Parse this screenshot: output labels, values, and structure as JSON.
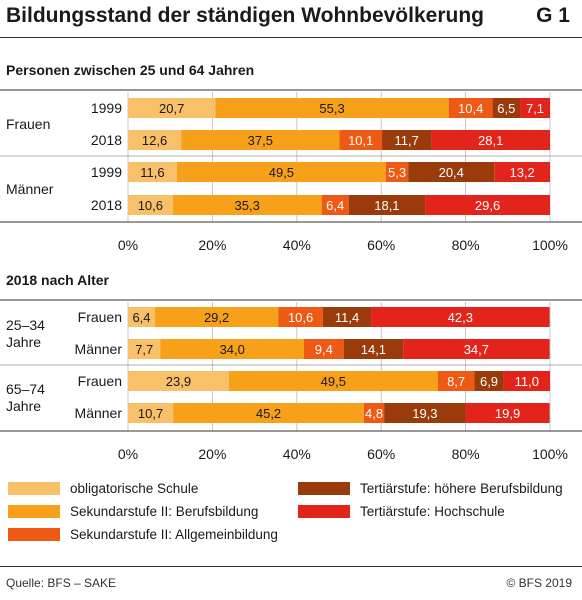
{
  "header": {
    "title": "Bildungsstand der ständigen Wohnbevölkerung",
    "id": "G 1"
  },
  "categories": [
    {
      "name": "obligatorische Schule",
      "color": "#f9c06a"
    },
    {
      "name": "Sekundarstufe II: Berufsbildung",
      "color": "#f7a11a"
    },
    {
      "name": "Sekundarstufe II: Allgemeinbildung",
      "color": "#ee5a14"
    },
    {
      "name": "Tertiärstufe: höhere Berufsbildung",
      "color": "#9a3b0c"
    },
    {
      "name": "Tertiärstufe: Hochschule",
      "color": "#e3241b"
    }
  ],
  "chart_data": [
    {
      "type": "bar",
      "orientation": "horizontal-stacked-100",
      "title": "Personen zwischen 25 und 64 Jahren",
      "xlim": [
        0,
        100
      ],
      "xticks": [
        "0%",
        "20%",
        "40%",
        "60%",
        "80%",
        "100%"
      ],
      "groups": [
        {
          "label": "Frauen",
          "rows": [
            {
              "label": "1999",
              "values": [
                20.7,
                55.3,
                10.4,
                6.5,
                7.1
              ]
            },
            {
              "label": "2018",
              "values": [
                12.6,
                37.5,
                10.1,
                11.7,
                28.1
              ]
            }
          ]
        },
        {
          "label": "Männer",
          "rows": [
            {
              "label": "1999",
              "values": [
                11.6,
                49.5,
                5.3,
                20.4,
                13.2
              ]
            },
            {
              "label": "2018",
              "values": [
                10.6,
                35.3,
                6.4,
                18.1,
                29.6
              ]
            }
          ]
        }
      ]
    },
    {
      "type": "bar",
      "orientation": "horizontal-stacked-100",
      "title": "2018 nach Alter",
      "xlim": [
        0,
        100
      ],
      "xticks": [
        "0%",
        "20%",
        "40%",
        "60%",
        "80%",
        "100%"
      ],
      "groups": [
        {
          "label": "25–34\nJahre",
          "rows": [
            {
              "label": "Frauen",
              "values": [
                6.4,
                29.2,
                10.6,
                11.4,
                42.3
              ]
            },
            {
              "label": "Männer",
              "values": [
                7.7,
                34.0,
                9.4,
                14.1,
                34.7
              ]
            }
          ]
        },
        {
          "label": "65–74\nJahre",
          "rows": [
            {
              "label": "Frauen",
              "values": [
                23.9,
                49.5,
                8.7,
                6.9,
                11.0
              ]
            },
            {
              "label": "Männer",
              "values": [
                10.7,
                45.2,
                4.8,
                19.3,
                19.9
              ]
            }
          ]
        }
      ]
    }
  ],
  "footer": {
    "source": "Quelle: BFS – SAKE",
    "copyright": "© BFS 2019"
  }
}
